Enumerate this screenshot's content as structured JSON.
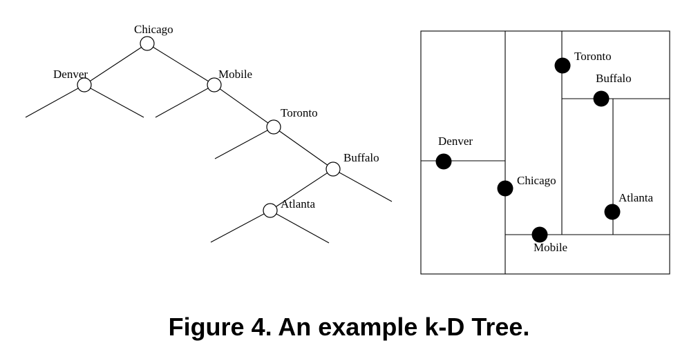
{
  "figure_caption": "Figure 4. An example k-D Tree.",
  "tree": {
    "nodes": {
      "chicago": "Chicago",
      "denver": "Denver",
      "mobile": "Mobile",
      "toronto": "Toronto",
      "buffalo": "Buffalo",
      "atlanta": "Atlanta"
    }
  },
  "partition": {
    "points": {
      "toronto": "Toronto",
      "buffalo": "Buffalo",
      "denver": "Denver",
      "chicago": "Chicago",
      "atlanta": "Atlanta",
      "mobile": "Mobile"
    }
  },
  "colors": {
    "ink": "#000000",
    "background": "#ffffff"
  }
}
